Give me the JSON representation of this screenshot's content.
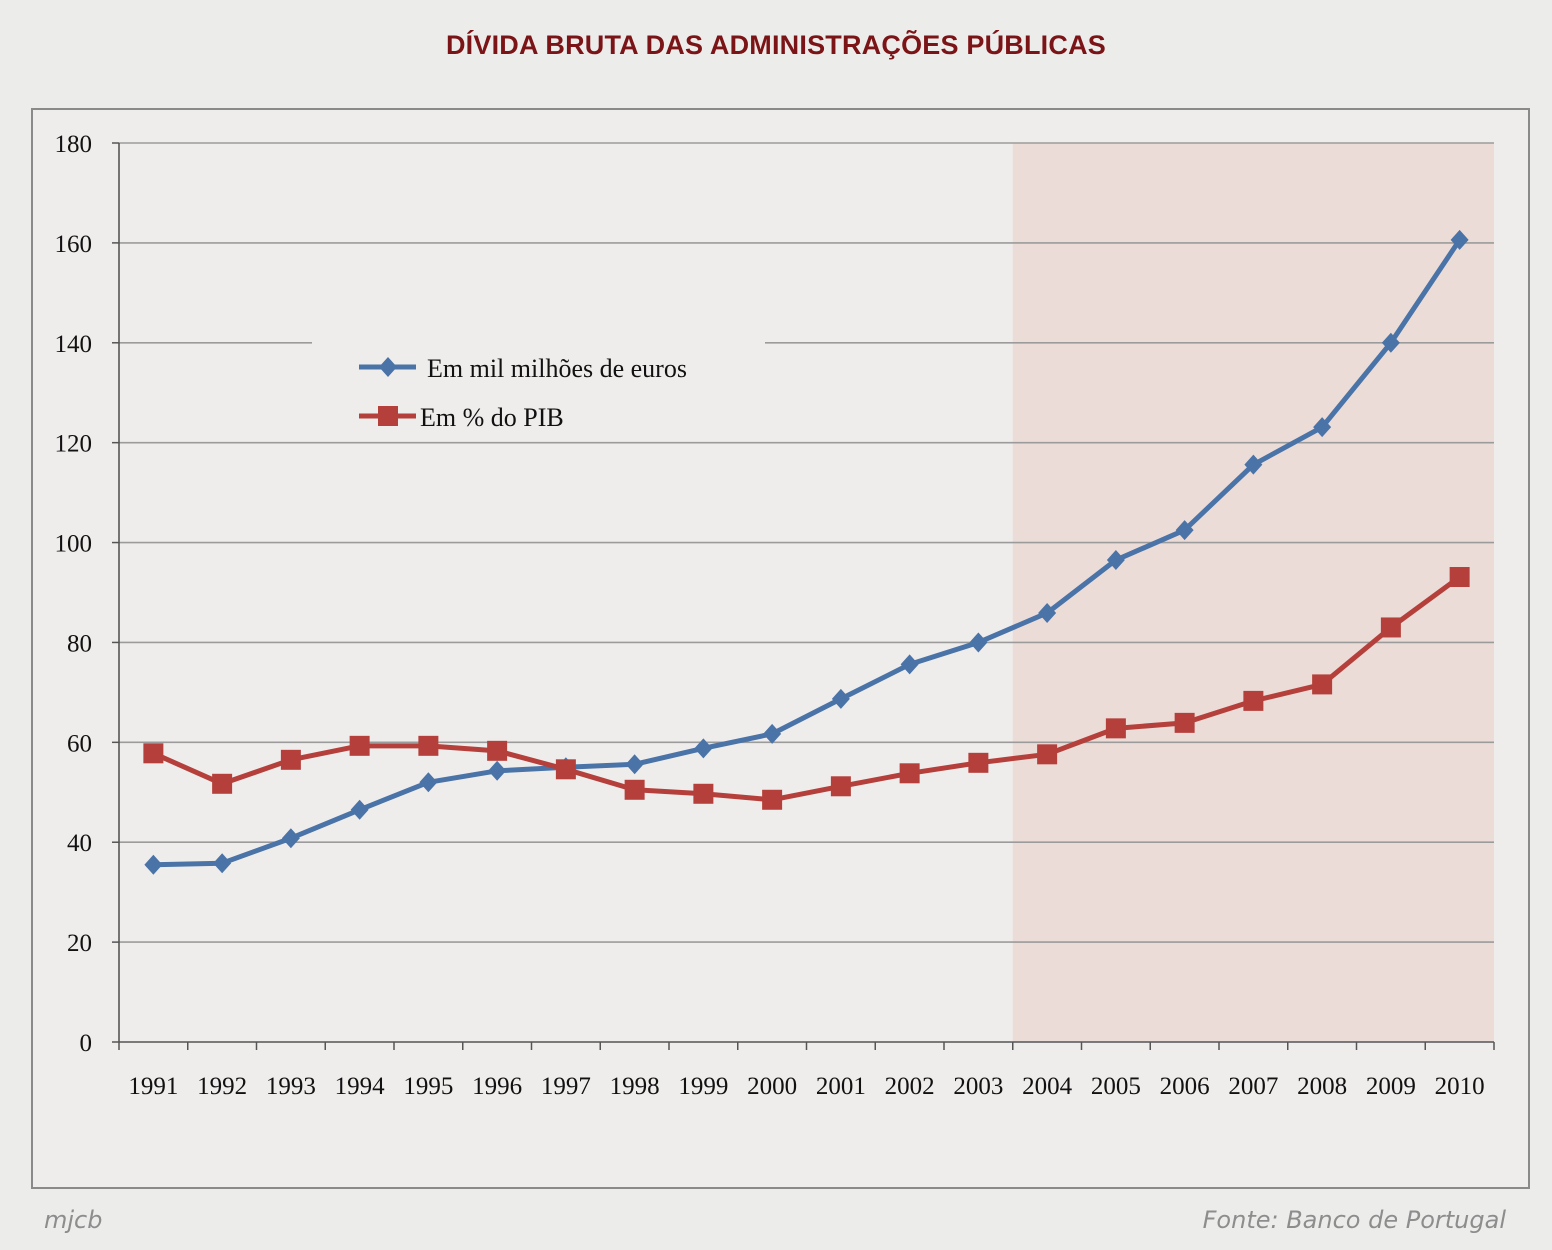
{
  "chart_data": {
    "type": "line",
    "title": "DÍVIDA BRUTA DAS ADMINISTRAÇÕES PÚBLICAS",
    "xlabel": "",
    "ylabel": "",
    "ylim": [
      0,
      180
    ],
    "yticks": [
      0,
      20,
      40,
      60,
      80,
      100,
      120,
      140,
      160,
      180
    ],
    "grid": true,
    "legend_position": "upper-left inside plot",
    "highlight_start_category": "2004",
    "highlight_color": "#ecdcd8",
    "categories": [
      "1991",
      "1992",
      "1993",
      "1994",
      "1995",
      "1996",
      "1997",
      "1998",
      "1999",
      "2000",
      "2001",
      "2002",
      "2003",
      "2004",
      "2005",
      "2006",
      "2007",
      "2008",
      "2009",
      "2010"
    ],
    "series": [
      {
        "name": "Em mil milhões de euros",
        "color": "#4a73a8",
        "marker": "diamond",
        "values": [
          35.5,
          35.8,
          40.8,
          46.5,
          52.0,
          54.3,
          55.0,
          55.6,
          58.8,
          61.7,
          68.7,
          75.6,
          80.0,
          85.9,
          96.5,
          102.5,
          115.6,
          123.1,
          140.0,
          160.6
        ]
      },
      {
        "name": "Em % do PIB",
        "color": "#b5403b",
        "marker": "square",
        "values": [
          57.8,
          51.7,
          56.5,
          59.3,
          59.3,
          58.3,
          54.6,
          50.5,
          49.7,
          48.5,
          51.2,
          53.8,
          55.9,
          57.6,
          62.8,
          63.9,
          68.3,
          71.6,
          83.0,
          93.1
        ]
      }
    ]
  },
  "footer": {
    "author": "mjcb",
    "source": "Fonte: Banco de Portugal"
  }
}
